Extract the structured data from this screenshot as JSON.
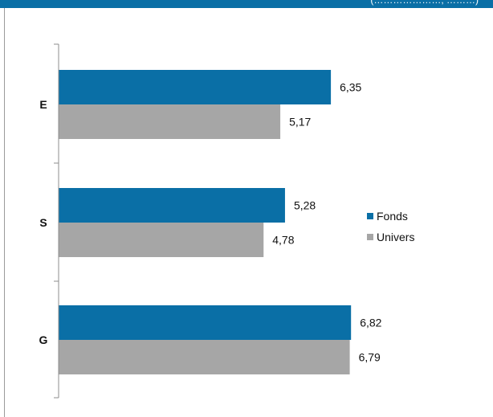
{
  "header": {
    "partial_text": "(…………………, ………)"
  },
  "chart_data": {
    "type": "bar",
    "orientation": "horizontal",
    "categories": [
      "E",
      "S",
      "G"
    ],
    "series": [
      {
        "name": "Fonds",
        "color": "#0a6fa6",
        "values": [
          6.35,
          5.28,
          6.82
        ],
        "labels": [
          "6,35",
          "5,28",
          "6,82"
        ]
      },
      {
        "name": "Univers",
        "color": "#a6a6a6",
        "values": [
          5.17,
          4.78,
          6.79
        ],
        "labels": [
          "5,17",
          "4,78",
          "6,79"
        ]
      }
    ],
    "xlim": [
      0,
      10
    ],
    "grid": false,
    "legend_position": "right"
  }
}
